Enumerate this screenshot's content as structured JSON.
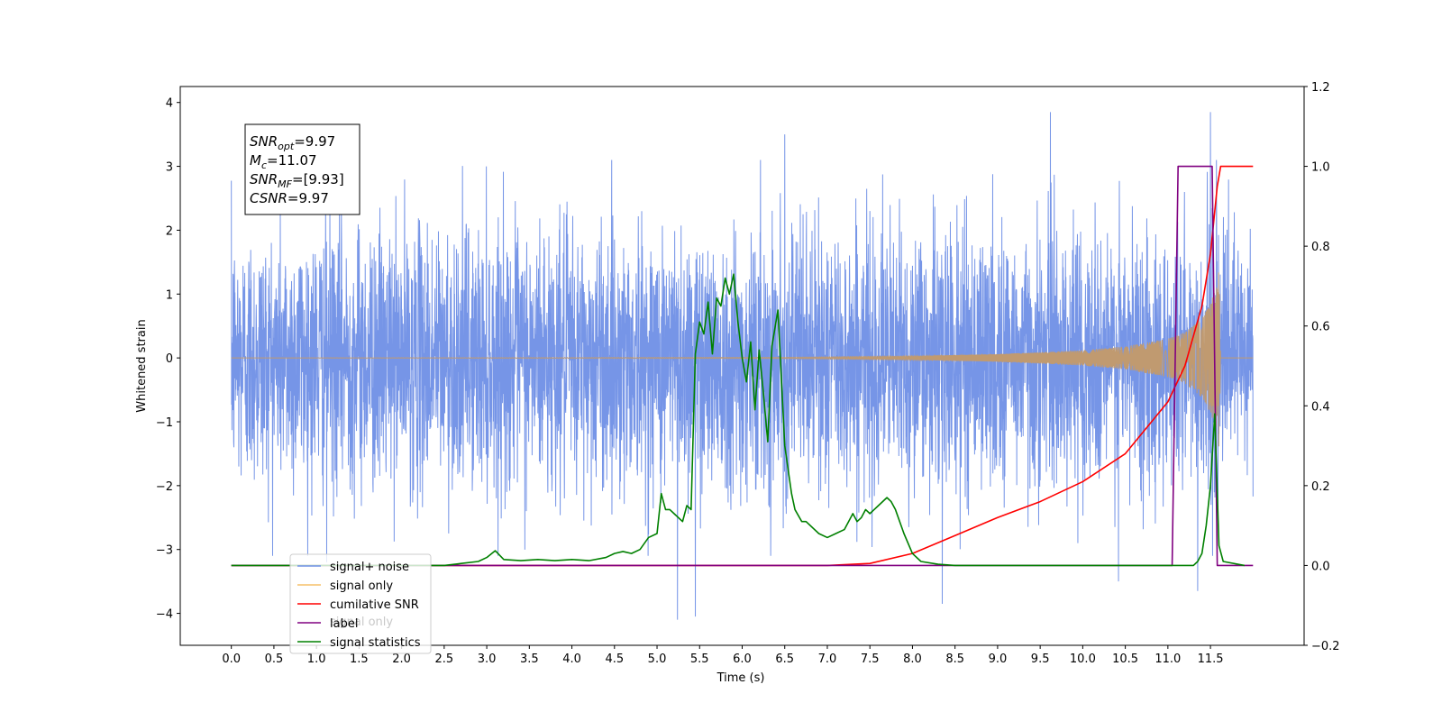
{
  "chart_data": {
    "type": "line",
    "title": "",
    "xlabel": "Time (s)",
    "ylabel": "Whitened strain",
    "y2label": "",
    "xlim": [
      -0.6,
      12.6
    ],
    "ylim": [
      -4.5,
      4.25
    ],
    "y2lim": [
      -0.2,
      1.2
    ],
    "x_ticks": [
      "0.0",
      "0.5",
      "1.0",
      "1.5",
      "2.0",
      "2.5",
      "3.0",
      "3.5",
      "4.0",
      "4.5",
      "5.0",
      "5.5",
      "6.0",
      "6.5",
      "7.0",
      "7.5",
      "8.0",
      "8.5",
      "9.0",
      "9.5",
      "10.0",
      "10.5",
      "11.0",
      "11.5"
    ],
    "y_ticks": [
      "4",
      "3",
      "2",
      "1",
      "0",
      "−1",
      "−2",
      "−3",
      "−4"
    ],
    "y2_ticks": [
      "1.2",
      "1.0",
      "0.8",
      "0.6",
      "0.4",
      "0.2",
      "0.0",
      "−0.2"
    ],
    "annotation": [
      {
        "sym": "SNR",
        "sub": "opt",
        "value": "=9.97"
      },
      {
        "sym": "M",
        "sub": "c",
        "value": "=11.07"
      },
      {
        "sym": "SNR",
        "sub": "MF",
        "value": "=[9.93]"
      },
      {
        "sym": "CSNR",
        "sub": "",
        "value": "=9.97"
      }
    ],
    "legend_placement": "lower-left",
    "legend": [
      {
        "label": "signal+ noise",
        "color": "#6f8fe6"
      },
      {
        "label": "signal only",
        "color": "#f5c06a"
      },
      {
        "label": "cumilative SNR",
        "color": "#ff0000"
      },
      {
        "label": "label",
        "color": "#800080"
      },
      {
        "label": "signal statistics",
        "color": "#008000"
      }
    ],
    "hidden_legend_text": "signal only",
    "series": [
      {
        "name": "signal+ noise",
        "axis": "left",
        "color": "#6f8fe6",
        "noise_std": 1.0,
        "x_range": [
          0.0,
          12.0
        ],
        "notable_peaks": [
          {
            "x": 1.12,
            "y": -3.2
          },
          {
            "x": 5.24,
            "y": -4.1
          },
          {
            "x": 5.45,
            "y": -4.05
          },
          {
            "x": 6.5,
            "y": 3.5
          },
          {
            "x": 8.35,
            "y": -3.85
          },
          {
            "x": 9.62,
            "y": 3.85
          },
          {
            "x": 10.42,
            "y": -3.5
          },
          {
            "x": 11.5,
            "y": 3.85
          },
          {
            "x": 11.35,
            "y": -3.65
          }
        ]
      },
      {
        "name": "signal only",
        "axis": "left",
        "color": "#c09a70",
        "x": [
          0,
          6.5,
          8.0,
          9.0,
          10.0,
          10.5,
          11.0,
          11.2,
          11.4,
          11.5,
          11.55,
          11.6,
          11.62,
          11.8,
          12.0
        ],
        "envelope": [
          0,
          0.01,
          0.03,
          0.06,
          0.12,
          0.18,
          0.3,
          0.4,
          0.62,
          0.85,
          1.05,
          1.4,
          0.0,
          0.0,
          0.0
        ]
      },
      {
        "name": "cumilative SNR",
        "axis": "right",
        "color": "#ff0000",
        "x": [
          0,
          7.0,
          7.5,
          8.0,
          8.5,
          9.0,
          9.5,
          10.0,
          10.5,
          11.0,
          11.2,
          11.4,
          11.5,
          11.58,
          11.62,
          12.0
        ],
        "y": [
          0,
          0.0,
          0.005,
          0.03,
          0.075,
          0.12,
          0.16,
          0.21,
          0.28,
          0.41,
          0.5,
          0.65,
          0.78,
          0.95,
          1.0,
          1.0
        ]
      },
      {
        "name": "label",
        "axis": "right",
        "color": "#800080",
        "x": [
          0,
          11.05,
          11.12,
          11.52,
          11.58,
          12.0
        ],
        "y": [
          0,
          0,
          1,
          1,
          0,
          0
        ]
      },
      {
        "name": "signal statistics",
        "axis": "right",
        "color": "#008000",
        "x": [
          0,
          2.5,
          2.7,
          2.9,
          3.0,
          3.1,
          3.2,
          3.4,
          3.6,
          3.8,
          4.0,
          4.2,
          4.4,
          4.5,
          4.6,
          4.7,
          4.8,
          4.9,
          5.0,
          5.05,
          5.1,
          5.15,
          5.2,
          5.3,
          5.35,
          5.4,
          5.45,
          5.5,
          5.55,
          5.6,
          5.65,
          5.7,
          5.75,
          5.8,
          5.85,
          5.9,
          5.95,
          6.0,
          6.05,
          6.1,
          6.15,
          6.2,
          6.25,
          6.3,
          6.35,
          6.42,
          6.5,
          6.58,
          6.62,
          6.7,
          6.75,
          6.9,
          7.0,
          7.1,
          7.2,
          7.3,
          7.35,
          7.4,
          7.45,
          7.5,
          7.55,
          7.6,
          7.7,
          7.75,
          7.8,
          7.9,
          8.0,
          8.1,
          8.3,
          8.5,
          11.3,
          11.35,
          11.4,
          11.45,
          11.5,
          11.55,
          11.6,
          11.65,
          11.9
        ],
        "y": [
          0,
          0.0,
          0.005,
          0.01,
          0.02,
          0.037,
          0.015,
          0.012,
          0.015,
          0.012,
          0.015,
          0.012,
          0.02,
          0.03,
          0.035,
          0.03,
          0.04,
          0.07,
          0.08,
          0.18,
          0.14,
          0.14,
          0.13,
          0.11,
          0.15,
          0.14,
          0.53,
          0.61,
          0.58,
          0.66,
          0.53,
          0.67,
          0.65,
          0.72,
          0.68,
          0.73,
          0.61,
          0.52,
          0.46,
          0.56,
          0.39,
          0.54,
          0.43,
          0.31,
          0.55,
          0.64,
          0.3,
          0.18,
          0.14,
          0.11,
          0.11,
          0.08,
          0.07,
          0.08,
          0.09,
          0.13,
          0.11,
          0.12,
          0.14,
          0.13,
          0.14,
          0.15,
          0.17,
          0.16,
          0.14,
          0.08,
          0.03,
          0.01,
          0.003,
          0.0,
          0.0,
          0.01,
          0.03,
          0.1,
          0.2,
          0.38,
          0.05,
          0.01,
          0.0
        ]
      }
    ]
  }
}
